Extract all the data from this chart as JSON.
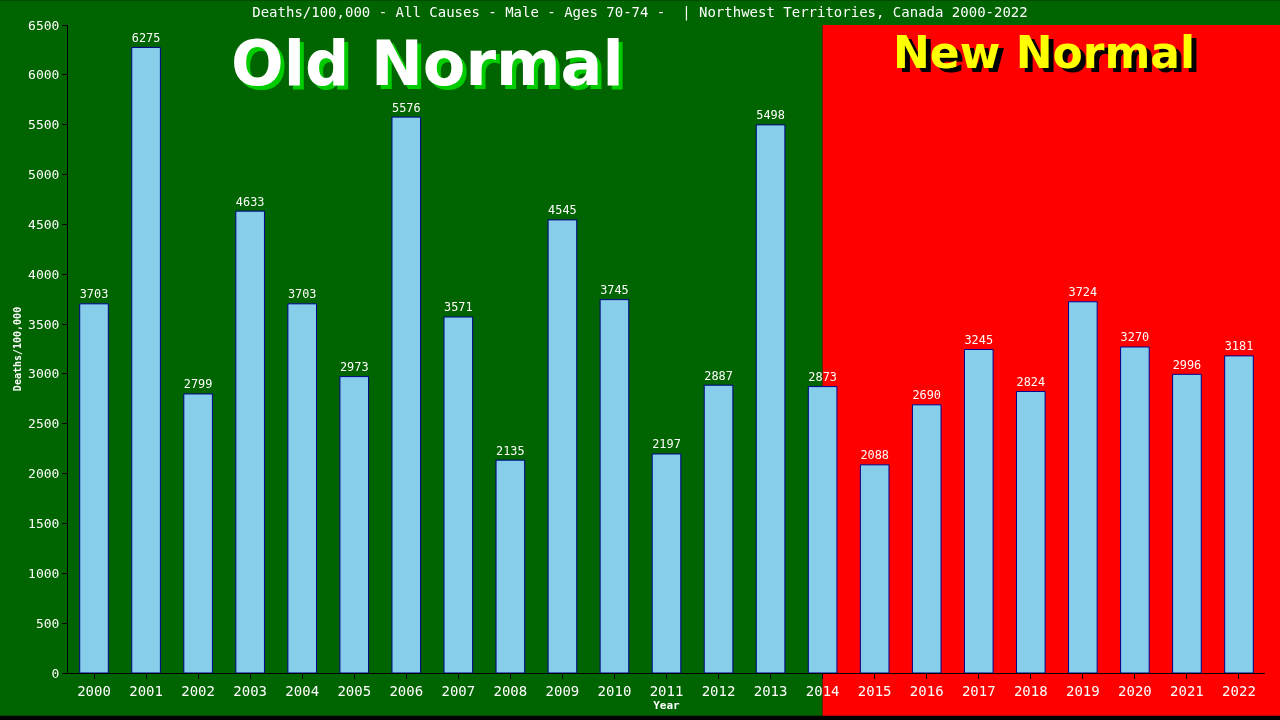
{
  "chart_data": {
    "type": "bar",
    "title": "Deaths/100,000 - All Causes - Male - Ages 70-74 -  | Northwest Territories, Canada 2000-2022",
    "xlabel": "Year",
    "ylabel": "Deaths/100,000",
    "categories": [
      "2000",
      "2001",
      "2002",
      "2003",
      "2004",
      "2005",
      "2006",
      "2007",
      "2008",
      "2009",
      "2010",
      "2011",
      "2012",
      "2013",
      "2014",
      "2015",
      "2016",
      "2017",
      "2018",
      "2019",
      "2020",
      "2021",
      "2022"
    ],
    "values": [
      3703,
      6275,
      2799,
      4633,
      3703,
      2973,
      5576,
      3571,
      2135,
      4545,
      3745,
      2197,
      2887,
      5498,
      2873,
      2088,
      2690,
      3245,
      2824,
      3724,
      3270,
      2996,
      3181
    ],
    "color": "#87ceeb",
    "data_labels": true,
    "ylim": [
      0,
      6500
    ],
    "yticks": [
      0,
      500,
      1000,
      1500,
      2000,
      2500,
      3000,
      3500,
      4000,
      4500,
      5000,
      5500,
      6000,
      6500
    ],
    "grid": false,
    "bands": [
      {
        "axis": "x",
        "from": "2000",
        "to": "2014",
        "label": "Old Normal",
        "color": "#006400"
      },
      {
        "axis": "x",
        "from": "2014",
        "to": "2022",
        "label": "New Normal",
        "color": "#ff0000"
      }
    ]
  }
}
